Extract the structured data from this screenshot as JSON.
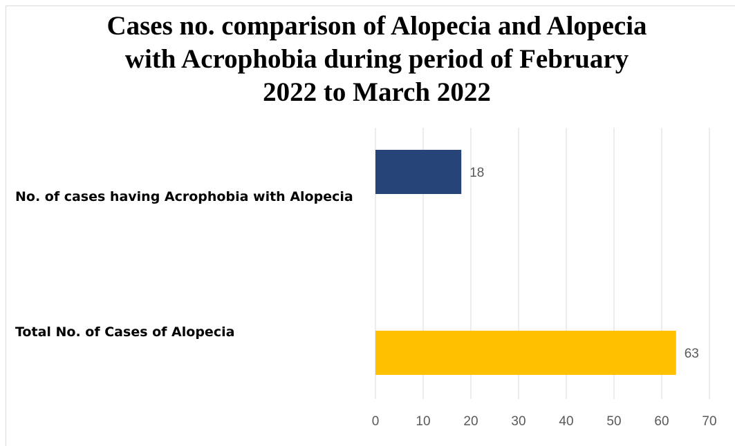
{
  "chart_data": {
    "type": "bar",
    "orientation": "horizontal",
    "title_lines": [
      "Cases no. comparison of Alopecia and Alopecia",
      "with Acrophobia during period of February",
      "2022 to March 2022"
    ],
    "categories": [
      "No. of cases having Acrophobia with Alopecia",
      "Total No. of Cases of Alopecia"
    ],
    "values": [
      18,
      63
    ],
    "bar_colors": [
      "#264478",
      "#FFC000"
    ],
    "data_labels": [
      "18",
      "63"
    ],
    "xlim": [
      0,
      70
    ],
    "x_ticks": [
      0,
      10,
      20,
      30,
      40,
      50,
      60,
      70
    ],
    "x_tick_labels": [
      "0",
      "10",
      "20",
      "30",
      "40",
      "50",
      "60",
      "70"
    ],
    "xlabel": "",
    "ylabel": "",
    "grid": "vertical",
    "legend": "none"
  }
}
